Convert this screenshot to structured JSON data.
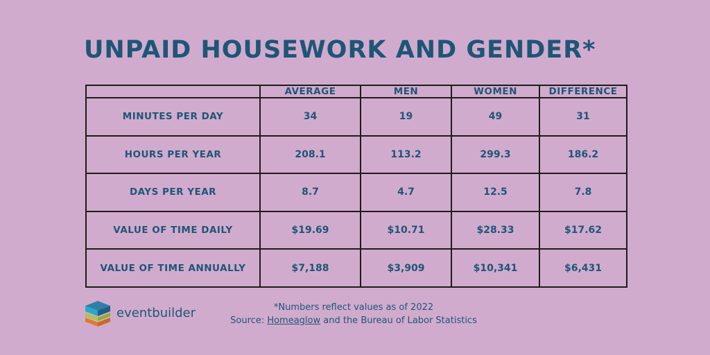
{
  "title": "UNPAID HOUSEWORK AND GENDER*",
  "chart_data": {
    "type": "table",
    "columns": [
      "",
      "AVERAGE",
      "MEN",
      "WOMEN",
      "DIFFERENCE"
    ],
    "rows": [
      {
        "label": "MINUTES PER DAY",
        "values": [
          "34",
          "19",
          "49",
          "31"
        ]
      },
      {
        "label": "HOURS PER YEAR",
        "values": [
          "208.1",
          "113.2",
          "299.3",
          "186.2"
        ]
      },
      {
        "label": "DAYS PER YEAR",
        "values": [
          "8.7",
          "4.7",
          "12.5",
          "7.8"
        ]
      },
      {
        "label": "VALUE OF TIME DAILY",
        "values": [
          "$19.69",
          "$10.71",
          "$28.33",
          "$17.62"
        ]
      },
      {
        "label": "VALUE OF TIME ANNUALLY",
        "values": [
          "$7,188",
          "$3,909",
          "$10,341",
          "$6,431"
        ]
      }
    ]
  },
  "footer": {
    "note": "*Numbers reflect values as of 2022",
    "source_prefix": "Source: ",
    "source_link": "Homeaglow",
    "source_suffix": " and the Bureau of Labor Statistics"
  },
  "brand": {
    "name": "eventbuilder",
    "logo_icon": "eventbuilder-cube-logo-icon",
    "colors": {
      "top": "#1f5f86",
      "left": "#2aa7c9",
      "middle": "#a6c93a",
      "bottom": "#e07a2f"
    }
  },
  "colors": {
    "background": "#d1abcd",
    "text": "#1d5677",
    "border": "#1c1c1c"
  }
}
